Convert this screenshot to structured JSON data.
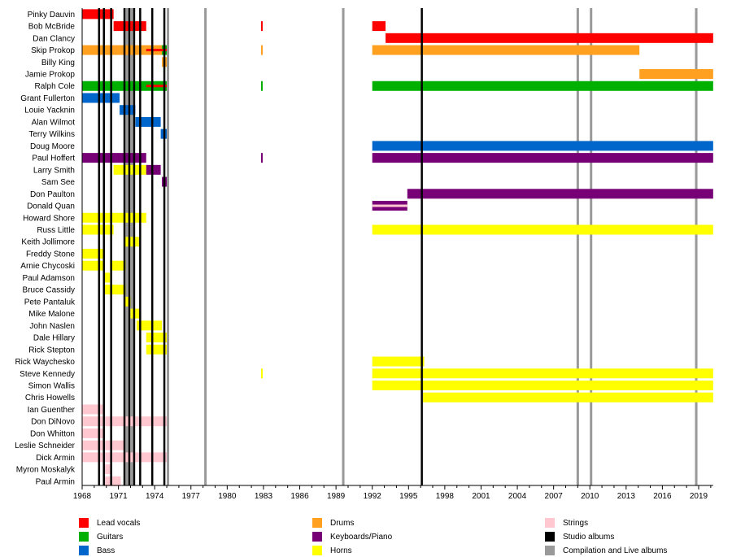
{
  "chart_data": {
    "type": "timeline",
    "title": "",
    "xlim": [
      1968,
      2020.2
    ],
    "x_ticks": [
      1968,
      1971,
      1974,
      1977,
      1980,
      1983,
      1986,
      1989,
      1992,
      1995,
      1998,
      2001,
      2004,
      2007,
      2010,
      2013,
      2016,
      2019
    ],
    "colors": {
      "Lead vocals": "#ff0000",
      "Guitars": "#00b000",
      "Bass": "#0066cc",
      "Drums": "#ffa020",
      "Keyboards/Piano": "#770077",
      "Horns": "#ffff00",
      "Strings": "#ffc8d0",
      "Studio albums": "#000000",
      "Compilation and Live albums": "#999999"
    },
    "members": [
      {
        "name": "Pinky Dauvin",
        "bars": [
          {
            "role": "Lead vocals",
            "start": 1968,
            "end": 1970.6
          }
        ]
      },
      {
        "name": "Bob McBride",
        "bars": [
          {
            "role": "Lead vocals",
            "start": 1970.6,
            "end": 1973.3
          },
          {
            "role": "Lead vocals",
            "start": 1982.8,
            "end": 1982.9
          },
          {
            "role": "Lead vocals",
            "start": 1992,
            "end": 1993.1
          }
        ]
      },
      {
        "name": "Dan Clancy",
        "bars": [
          {
            "role": "Lead vocals",
            "start": 1993.1,
            "end": 2020.2
          }
        ]
      },
      {
        "name": "Skip Prokop",
        "bars": [
          {
            "role": "Drums",
            "start": 1968,
            "end": 1974.6
          },
          {
            "role": "Guitars",
            "start": 1974.6,
            "end": 1975
          },
          {
            "role": "Drums",
            "start": 1982.8,
            "end": 1982.9
          },
          {
            "role": "Drums",
            "start": 1992,
            "end": 2014.1
          }
        ],
        "overlay": [
          {
            "role": "Lead vocals",
            "start": 1973.3,
            "end": 1975
          }
        ]
      },
      {
        "name": "Billy King",
        "bars": [
          {
            "role": "Drums",
            "start": 1974.6,
            "end": 1975
          }
        ]
      },
      {
        "name": "Jamie Prokop",
        "bars": [
          {
            "role": "Drums",
            "start": 2014.1,
            "end": 2020.2
          }
        ]
      },
      {
        "name": "Ralph Cole",
        "bars": [
          {
            "role": "Guitars",
            "start": 1968,
            "end": 1975
          },
          {
            "role": "Guitars",
            "start": 1982.8,
            "end": 1982.9
          },
          {
            "role": "Guitars",
            "start": 1992,
            "end": 2020.2
          }
        ],
        "overlay": [
          {
            "role": "Lead vocals",
            "start": 1973.3,
            "end": 1975
          }
        ]
      },
      {
        "name": "Grant Fullerton",
        "bars": [
          {
            "role": "Bass",
            "start": 1968,
            "end": 1971.1
          }
        ]
      },
      {
        "name": "Louie Yacknin",
        "bars": [
          {
            "role": "Bass",
            "start": 1971.1,
            "end": 1972.4
          }
        ]
      },
      {
        "name": "Alan Wilmot",
        "bars": [
          {
            "role": "Bass",
            "start": 1972.4,
            "end": 1974.5
          }
        ]
      },
      {
        "name": "Terry Wilkins",
        "bars": [
          {
            "role": "Bass",
            "start": 1974.5,
            "end": 1975
          }
        ]
      },
      {
        "name": "Doug Moore",
        "bars": [
          {
            "role": "Bass",
            "start": 1992,
            "end": 2020.2
          }
        ]
      },
      {
        "name": "Paul Hoffert",
        "bars": [
          {
            "role": "Keyboards/Piano",
            "start": 1968,
            "end": 1973.3
          },
          {
            "role": "Keyboards/Piano",
            "start": 1982.8,
            "end": 1982.9
          },
          {
            "role": "Keyboards/Piano",
            "start": 1992,
            "end": 2020.2
          }
        ]
      },
      {
        "name": "Larry Smith",
        "bars": [
          {
            "role": "Horns",
            "start": 1970.6,
            "end": 1973.3
          },
          {
            "role": "Keyboards/Piano",
            "start": 1973.3,
            "end": 1974.5
          }
        ]
      },
      {
        "name": "Sam See",
        "bars": [
          {
            "role": "Keyboards/Piano",
            "start": 1974.6,
            "end": 1975
          }
        ]
      },
      {
        "name": "Don Paulton",
        "bars": [
          {
            "role": "Keyboards/Piano",
            "start": 1994.9,
            "end": 2020.2
          }
        ]
      },
      {
        "name": "Donald Quan",
        "bars": [
          {
            "role": "Keyboards/Piano",
            "start": 1992,
            "end": 1994.9
          }
        ],
        "overlay": [
          {
            "role": "Strings",
            "start": 1992,
            "end": 1994.9
          }
        ]
      },
      {
        "name": "Howard Shore",
        "bars": [
          {
            "role": "Horns",
            "start": 1968,
            "end": 1973.3
          }
        ]
      },
      {
        "name": "Russ Little",
        "bars": [
          {
            "role": "Horns",
            "start": 1968,
            "end": 1970.6
          },
          {
            "role": "Horns",
            "start": 1992,
            "end": 2020.2
          }
        ]
      },
      {
        "name": "Keith Jollimore",
        "bars": [
          {
            "role": "Horns",
            "start": 1971.5,
            "end": 1972.7
          }
        ]
      },
      {
        "name": "Freddy Stone",
        "bars": [
          {
            "role": "Horns",
            "start": 1968,
            "end": 1969.8
          }
        ]
      },
      {
        "name": "Arnie Chycoski",
        "bars": [
          {
            "role": "Horns",
            "start": 1968,
            "end": 1969.8
          },
          {
            "role": "Horns",
            "start": 1970.3,
            "end": 1971.6
          }
        ]
      },
      {
        "name": "Paul Adamson",
        "bars": [
          {
            "role": "Horns",
            "start": 1969.8,
            "end": 1970.3
          }
        ]
      },
      {
        "name": "Bruce Cassidy",
        "bars": [
          {
            "role": "Horns",
            "start": 1969.8,
            "end": 1971.6
          }
        ]
      },
      {
        "name": "Pete Pantaluk",
        "bars": [
          {
            "role": "Horns",
            "start": 1971.5,
            "end": 1972
          }
        ]
      },
      {
        "name": "Mike Malone",
        "bars": [
          {
            "role": "Horns",
            "start": 1972,
            "end": 1972.8
          }
        ]
      },
      {
        "name": "John Naslen",
        "bars": [
          {
            "role": "Horns",
            "start": 1972.5,
            "end": 1974.6
          }
        ]
      },
      {
        "name": "Dale Hillary",
        "bars": [
          {
            "role": "Horns",
            "start": 1973.3,
            "end": 1975
          }
        ]
      },
      {
        "name": "Rick Stepton",
        "bars": [
          {
            "role": "Horns",
            "start": 1973.3,
            "end": 1975
          }
        ]
      },
      {
        "name": "Rick Waychesko",
        "bars": [
          {
            "role": "Horns",
            "start": 1992,
            "end": 1996.3
          }
        ]
      },
      {
        "name": "Steve Kennedy",
        "bars": [
          {
            "role": "Horns",
            "start": 1982.8,
            "end": 1982.9
          },
          {
            "role": "Horns",
            "start": 1992,
            "end": 2020.2
          }
        ]
      },
      {
        "name": "Simon Wallis",
        "bars": [
          {
            "role": "Horns",
            "start": 1992,
            "end": 2020.2
          }
        ]
      },
      {
        "name": "Chris Howells",
        "bars": [
          {
            "role": "Horns",
            "start": 1996.2,
            "end": 2020.2
          }
        ]
      },
      {
        "name": "Ian Guenther",
        "bars": [
          {
            "role": "Strings",
            "start": 1968,
            "end": 1969.8
          }
        ]
      },
      {
        "name": "Don DiNovo",
        "bars": [
          {
            "role": "Strings",
            "start": 1968,
            "end": 1975
          }
        ]
      },
      {
        "name": "Don Whitton",
        "bars": [
          {
            "role": "Strings",
            "start": 1968,
            "end": 1969.8
          }
        ]
      },
      {
        "name": "Leslie Schneider",
        "bars": [
          {
            "role": "Strings",
            "start": 1968,
            "end": 1971.5
          }
        ]
      },
      {
        "name": "Dick Armin",
        "bars": [
          {
            "role": "Strings",
            "start": 1968,
            "end": 1975
          }
        ]
      },
      {
        "name": "Myron Moskalyk",
        "bars": [
          {
            "role": "Strings",
            "start": 1969.8,
            "end": 1970.4
          }
        ]
      },
      {
        "name": "Paul Armin",
        "bars": [
          {
            "role": "Strings",
            "start": 1969.8,
            "end": 1971.2
          }
        ]
      }
    ],
    "studio_albums": [
      1969.4,
      1969.8,
      1970.4,
      1971.5,
      1971.9,
      1972.3,
      1972.8,
      1973.8,
      1974.8,
      1996.1
    ],
    "compilation_live_albums": [
      1971.7,
      1972.1,
      1975.1,
      1978.2,
      1989.6,
      2009.0,
      2010.1,
      2018.8
    ],
    "legend": [
      {
        "label": "Lead vocals",
        "color": "#ff0000"
      },
      {
        "label": "Guitars",
        "color": "#00b000"
      },
      {
        "label": "Bass",
        "color": "#0066cc"
      },
      {
        "label": "Drums",
        "color": "#ffa020"
      },
      {
        "label": "Keyboards/Piano",
        "color": "#770077"
      },
      {
        "label": "Horns",
        "color": "#ffff00"
      },
      {
        "label": "Strings",
        "color": "#ffc8d0"
      },
      {
        "label": "Studio albums",
        "color": "#000000"
      },
      {
        "label": "Compilation and Live albums",
        "color": "#999999"
      }
    ],
    "legend_position": "bottom"
  }
}
